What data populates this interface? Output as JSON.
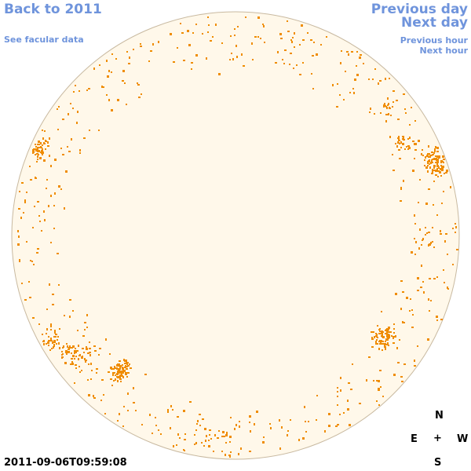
{
  "nav": {
    "back": "Back to 2011",
    "facular": "See facular data",
    "prev_day": "Previous day",
    "next_day": "Next day",
    "prev_hour": "Previous hour",
    "next_hour": "Next hour"
  },
  "timestamp": "2011-09-06T09:59:08",
  "compass": {
    "n": "N",
    "e": "E",
    "center": "+",
    "w": "W",
    "s": "S"
  },
  "colors": {
    "disk_fill": "#fff8ea",
    "disk_stroke": "#c8b9a0",
    "faculae": "#ef8c00",
    "link": "#6f94dc"
  }
}
